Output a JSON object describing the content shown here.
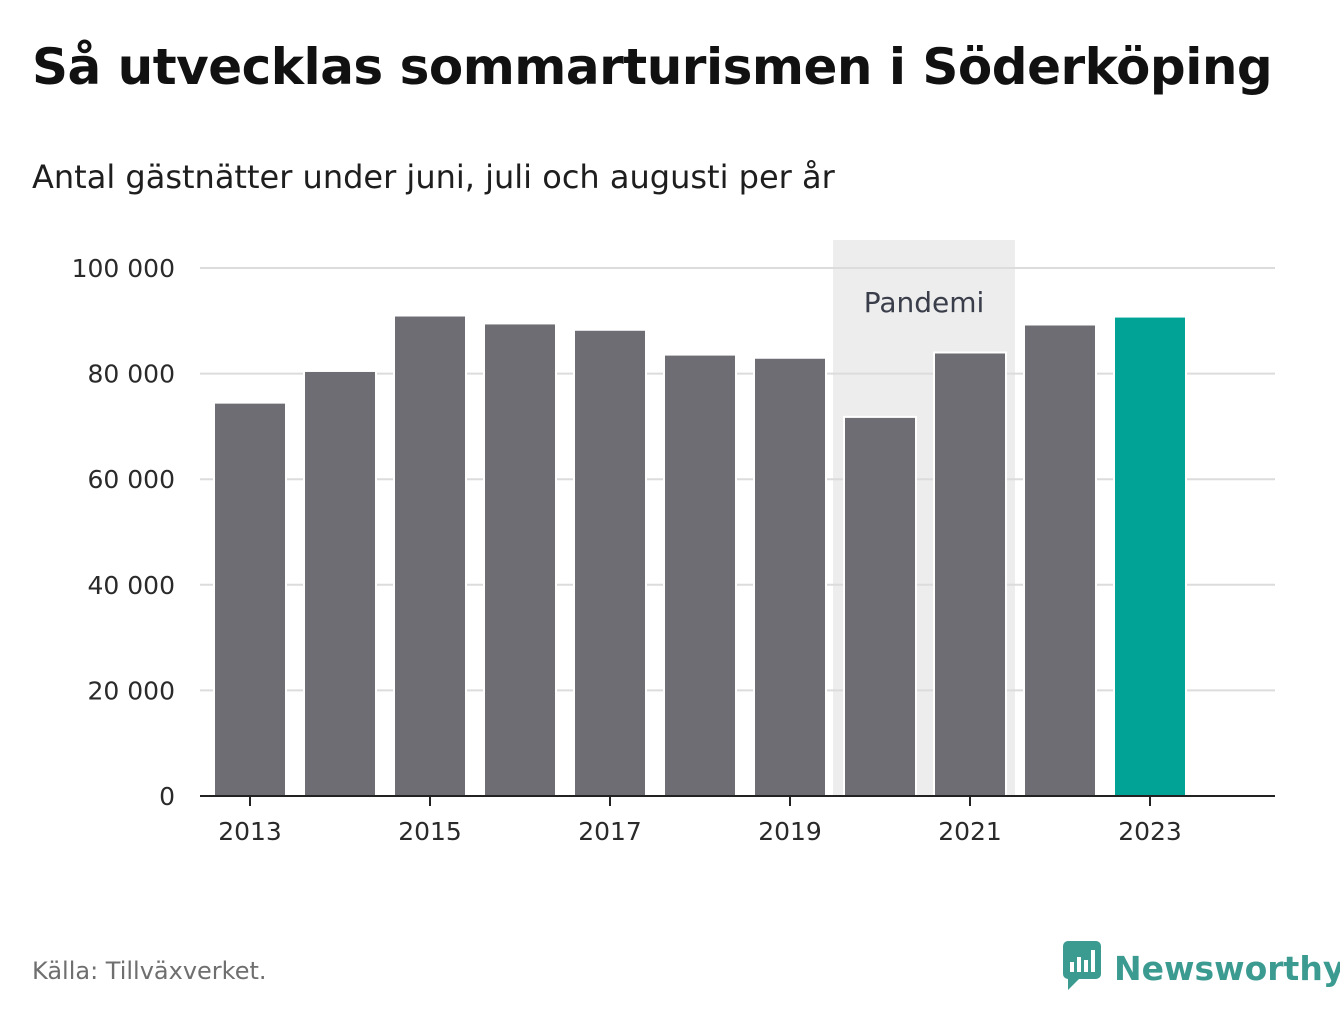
{
  "title": "Så utvecklas sommarturismen i Söderköping",
  "subtitle": "Antal gästnätter under juni, juli och augusti per år",
  "source": "Källa: Tillväxverket.",
  "brand": {
    "name": "Newsworthy",
    "icon": "newsworthy-logo-icon",
    "color": "#3c9b91"
  },
  "colors": {
    "bar": "#6e6d73",
    "highlight": "#00a396",
    "annotation_bg": "#ededed",
    "grid": "#dcdcdc",
    "axis": "#222222"
  },
  "chart_data": {
    "type": "bar",
    "categories": [
      "2013",
      "2014",
      "2015",
      "2016",
      "2017",
      "2018",
      "2019",
      "2020",
      "2021",
      "2022",
      "2023"
    ],
    "values": [
      74500,
      80500,
      91000,
      89500,
      88300,
      83600,
      83000,
      71800,
      84000,
      89300,
      90800
    ],
    "highlight_index": 10,
    "ylim": [
      0,
      100000
    ],
    "yticks": [
      0,
      20000,
      40000,
      60000,
      80000,
      100000
    ],
    "ytick_labels": [
      "0",
      "20 000",
      "40 000",
      "60 000",
      "80 000",
      "100 000"
    ],
    "xtick_labels": [
      "2013",
      "2015",
      "2017",
      "2019",
      "2021",
      "2023"
    ],
    "annotation": {
      "label": "Pandemi",
      "from": "2020",
      "to": "2021"
    },
    "grid": true,
    "legend": false
  }
}
